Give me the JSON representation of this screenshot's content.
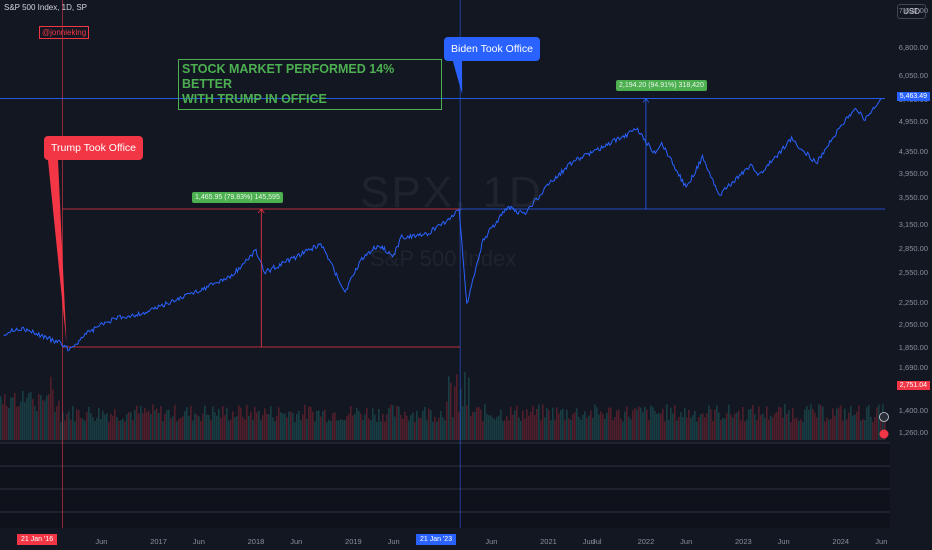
{
  "header": {
    "symbol_info": "S&P 500 Index, 1D, SP",
    "currency": "USD"
  },
  "author_tag": "@jonnieking",
  "headline": "STOCK MARKET PERFORMED 14% BETTER\nWITH TRUMP IN OFFICE",
  "callouts": {
    "trump": "Trump Took Office",
    "biden": "Biden Took Office"
  },
  "measure_labels": {
    "trump_period": "1,465.95 (79.83%) 145,595",
    "biden_period": "2,194.20 (94.91%) 318,420"
  },
  "watermark": {
    "ticker": "SPX, 1D",
    "name": "S&P 500 Index"
  },
  "price_tags": {
    "current": "5,463.49",
    "volume": "2,751.04"
  },
  "x_tags": {
    "trump_date": "21 Jan '16",
    "biden_date": "21 Jan '23"
  },
  "colors": {
    "background": "#131722",
    "line": "#2962ff",
    "trump": "#f23645",
    "biden": "#2962ff",
    "measure": "#4caf50"
  },
  "chart_data": {
    "type": "line",
    "title": "S&P 500 Index, 1D, SP",
    "y_axis_ticks": [
      7600,
      6800,
      6050,
      5450,
      4950,
      4350,
      3950,
      3550,
      3150,
      2850,
      2550,
      2250,
      2050,
      1850,
      1690,
      1550,
      1400,
      1260
    ],
    "y_axis_tick_labels": [
      "7,600.00",
      "6,800.00",
      "6,050.00",
      "5,450.00",
      "4,950.00",
      "4,350.00",
      "3,950.00",
      "3,550.00",
      "3,150.00",
      "2,850.00",
      "2,550.00",
      "2,250.00",
      "2,050.00",
      "1,850.00",
      "1,690.00",
      "1,550.00",
      "1,400.00",
      "1,260.00"
    ],
    "x_axis_ticks": [
      {
        "label": "Jun",
        "date": "2016-06"
      },
      {
        "label": "2017",
        "date": "2017-01"
      },
      {
        "label": "Jun",
        "date": "2017-06"
      },
      {
        "label": "2018",
        "date": "2018-01"
      },
      {
        "label": "Jun",
        "date": "2018-06"
      },
      {
        "label": "2019",
        "date": "2019-01"
      },
      {
        "label": "Jun",
        "date": "2019-06"
      },
      {
        "label": "Jun",
        "date": "2020-06"
      },
      {
        "label": "2021",
        "date": "2021-01"
      },
      {
        "label": "Jun",
        "date": "2021-06"
      },
      {
        "label": "Jul",
        "date": "2021-07"
      },
      {
        "label": "2022",
        "date": "2022-01"
      },
      {
        "label": "Jun",
        "date": "2022-06"
      },
      {
        "label": "2023",
        "date": "2023-01"
      },
      {
        "label": "Jun",
        "date": "2023-06"
      },
      {
        "label": "2024",
        "date": "2024-01"
      },
      {
        "label": "Jun",
        "date": "2024-06"
      }
    ],
    "series": [
      {
        "name": "SPX",
        "points": [
          [
            "2015-06",
            1960
          ],
          [
            "2015-08",
            2010
          ],
          [
            "2015-10",
            1960
          ],
          [
            "2016-01",
            1880
          ],
          [
            "2016-02",
            1830
          ],
          [
            "2016-04",
            1950
          ],
          [
            "2016-06",
            2040
          ],
          [
            "2016-08",
            2100
          ],
          [
            "2016-11",
            2140
          ],
          [
            "2017-01",
            2200
          ],
          [
            "2017-04",
            2300
          ],
          [
            "2017-07",
            2400
          ],
          [
            "2017-10",
            2520
          ],
          [
            "2018-01",
            2820
          ],
          [
            "2018-02",
            2560
          ],
          [
            "2018-05",
            2690
          ],
          [
            "2018-09",
            2900
          ],
          [
            "2018-12",
            2350
          ],
          [
            "2019-02",
            2720
          ],
          [
            "2019-04",
            2880
          ],
          [
            "2019-06",
            2760
          ],
          [
            "2019-07",
            2990
          ],
          [
            "2019-10",
            3020
          ],
          [
            "2020-01",
            3250
          ],
          [
            "2020-02",
            3380
          ],
          [
            "2020-03",
            2230
          ],
          [
            "2020-05",
            2950
          ],
          [
            "2020-08",
            3400
          ],
          [
            "2020-10",
            3300
          ],
          [
            "2021-01",
            3750
          ],
          [
            "2021-04",
            4150
          ],
          [
            "2021-08",
            4450
          ],
          [
            "2021-12",
            4780
          ],
          [
            "2022-02",
            4300
          ],
          [
            "2022-03",
            4500
          ],
          [
            "2022-06",
            3700
          ],
          [
            "2022-08",
            4230
          ],
          [
            "2022-10",
            3580
          ],
          [
            "2023-02",
            4100
          ],
          [
            "2023-03",
            3900
          ],
          [
            "2023-07",
            4580
          ],
          [
            "2023-10",
            4120
          ],
          [
            "2024-01",
            4850
          ],
          [
            "2024-03",
            5220
          ],
          [
            "2024-04",
            4970
          ],
          [
            "2024-06",
            5460
          ]
        ]
      }
    ],
    "markers": {
      "trump_took_office": {
        "date": "2016-01-21",
        "price": 1850
      },
      "biden_took_office": {
        "date": "2020-02-19",
        "price": 3375
      },
      "current": {
        "date": "2024-06-28",
        "price": 5463.49
      }
    },
    "grid": false,
    "legend": "none"
  }
}
